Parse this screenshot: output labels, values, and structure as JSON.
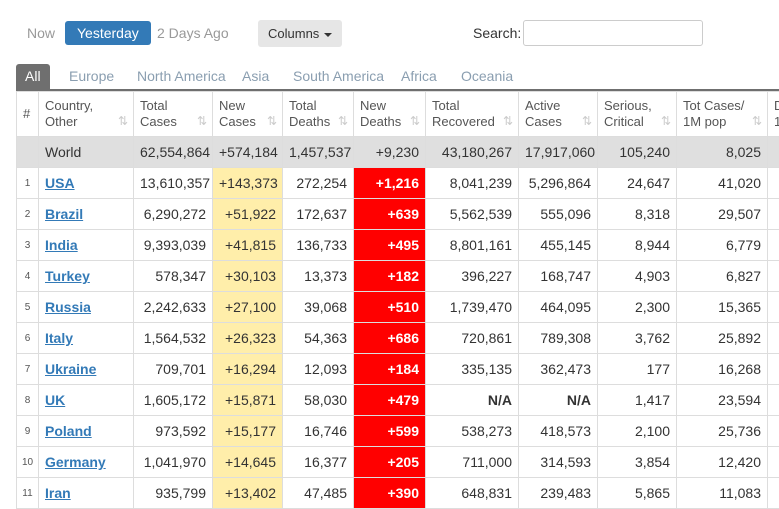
{
  "nav": {
    "tabs": [
      "Now",
      "Yesterday",
      "2 Days Ago"
    ],
    "columns_button": "Columns",
    "search_label": "Search:"
  },
  "regions": [
    "All",
    "Europe",
    "North America",
    "Asia",
    "South America",
    "Africa",
    "Oceania"
  ],
  "table": {
    "headers": [
      "#",
      "Country,\nOther",
      "Total\nCases",
      "New\nCases",
      "Total\nDeaths",
      "New\nDeaths",
      "Total\nRecovered",
      "Active\nCases",
      "Serious,\nCritical",
      "Tot Cases/\n1M pop",
      "D\n1"
    ],
    "world": [
      "World",
      "62,554,864",
      "+574,184",
      "1,457,537",
      "+9,230",
      "43,180,267",
      "17,917,060",
      "105,240",
      "8,025"
    ],
    "rows": [
      [
        1,
        "USA",
        "13,610,357",
        "+143,373",
        "272,254",
        "+1,216",
        "8,041,239",
        "5,296,864",
        "24,647",
        "41,020"
      ],
      [
        2,
        "Brazil",
        "6,290,272",
        "+51,922",
        "172,637",
        "+639",
        "5,562,539",
        "555,096",
        "8,318",
        "29,507"
      ],
      [
        3,
        "India",
        "9,393,039",
        "+41,815",
        "136,733",
        "+495",
        "8,801,161",
        "455,145",
        "8,944",
        "6,779"
      ],
      [
        4,
        "Turkey",
        "578,347",
        "+30,103",
        "13,373",
        "+182",
        "396,227",
        "168,747",
        "4,903",
        "6,827"
      ],
      [
        5,
        "Russia",
        "2,242,633",
        "+27,100",
        "39,068",
        "+510",
        "1,739,470",
        "464,095",
        "2,300",
        "15,365"
      ],
      [
        6,
        "Italy",
        "1,564,532",
        "+26,323",
        "54,363",
        "+686",
        "720,861",
        "789,308",
        "3,762",
        "25,892"
      ],
      [
        7,
        "Ukraine",
        "709,701",
        "+16,294",
        "12,093",
        "+184",
        "335,135",
        "362,473",
        "177",
        "16,268"
      ],
      [
        8,
        "UK",
        "1,605,172",
        "+15,871",
        "58,030",
        "+479",
        "N/A",
        "N/A",
        "1,417",
        "23,594"
      ],
      [
        9,
        "Poland",
        "973,592",
        "+15,177",
        "16,746",
        "+599",
        "538,273",
        "418,573",
        "2,100",
        "25,736"
      ],
      [
        10,
        "Germany",
        "1,041,970",
        "+14,645",
        "16,377",
        "+205",
        "711,000",
        "314,593",
        "3,854",
        "12,420"
      ],
      [
        11,
        "Iran",
        "935,799",
        "+13,402",
        "47,485",
        "+390",
        "648,831",
        "239,483",
        "5,865",
        "11,083"
      ]
    ]
  }
}
